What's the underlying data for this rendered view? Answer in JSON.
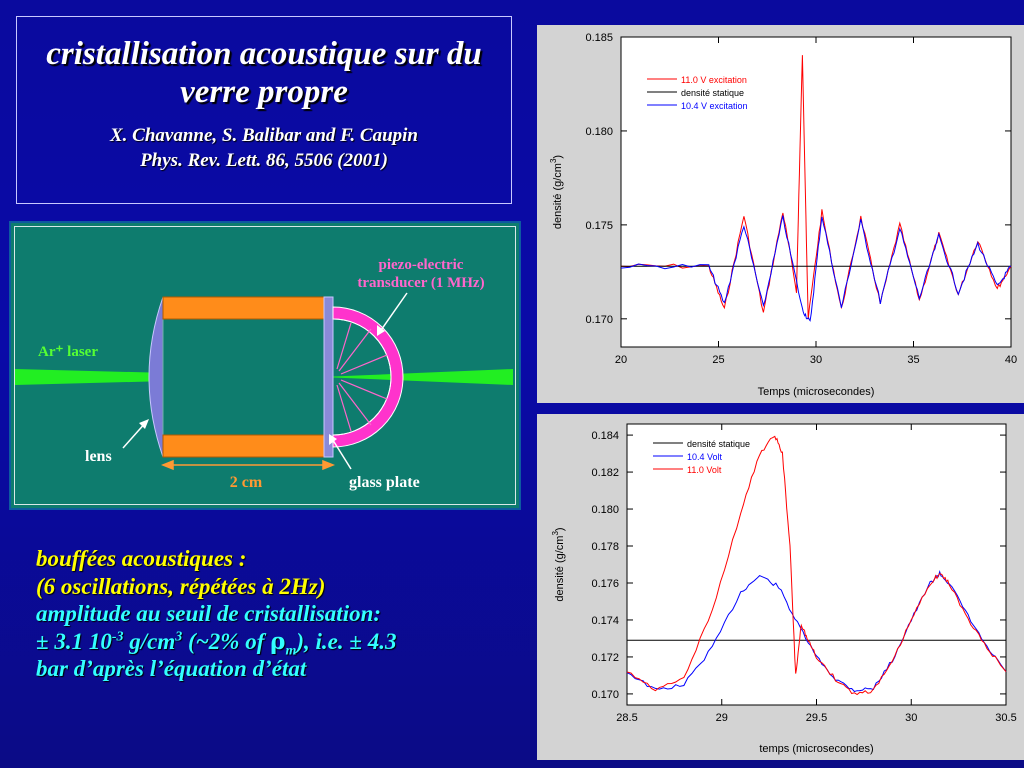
{
  "title": {
    "main": "cristallisation acoustique sur du verre propre",
    "authors": "X. Chavanne, S. Balibar and F. Caupin",
    "reference": "Phys. Rev. Lett. 86, 5506 (2001)"
  },
  "diagram": {
    "laser_label": "Ar⁺ laser",
    "transducer_label_1": "piezo-electric",
    "transducer_label_2": "transducer (1 MHz)",
    "lens_label": "lens",
    "glass_plate_label": "glass plate",
    "scale_label": "2 cm",
    "colors": {
      "background": "#0e7c6e",
      "laser": "#22ee22",
      "cell": "#ff8c1a",
      "transducer": "#ff33cc",
      "lens": "#7b7bd6",
      "label_pink": "#ff66cc",
      "label_green": "#55ff33",
      "label_orange": "#ff9933"
    }
  },
  "bottom_text": {
    "line1": "bouffées acoustiques :",
    "line2": "(6 oscillations, répétées à  2Hz)",
    "line3": "amplitude au seuil de cristallisation:",
    "line4_a": "±   3.1 10",
    "line4_sup1": "-3",
    "line4_b": " g/cm",
    "line4_sup2": "3",
    "line4_c": " (~2% of ",
    "line4_rho": "ρ",
    "line4_sub": "m",
    "line4_d": "), i.e. ± 4.3",
    "line5": "bar d’après l’équation d’état"
  },
  "chart_data": [
    {
      "type": "line",
      "xlabel": "Temps  (microsecondes)",
      "ylabel": "densité  (g/cm",
      "ylabel_sup": "3",
      "ylabel_close": ")",
      "xlim": [
        20,
        40
      ],
      "ylim": [
        0.1685,
        0.185
      ],
      "xticks": [
        20,
        25,
        30,
        35,
        40
      ],
      "yticks": [
        0.17,
        0.175,
        0.18,
        0.185
      ],
      "xtick_labels": [
        "20",
        "25",
        "30",
        "35",
        "40"
      ],
      "ytick_labels": [
        "0.170",
        "0.175",
        "0.180",
        "0.185"
      ],
      "legend_position": "top-left",
      "series": [
        {
          "name": "11.0 V excitation",
          "color": "#ff0000",
          "x": [
            20,
            24.5,
            25.3,
            26.3,
            27.3,
            28.3,
            29.0,
            29.3,
            29.6,
            30.3,
            31.3,
            32.3,
            33.3,
            34.3,
            35.3,
            36.3,
            37.3,
            38.3,
            39.3,
            40
          ],
          "y": [
            0.1728,
            0.1728,
            0.1705,
            0.1755,
            0.1703,
            0.1757,
            0.1715,
            0.1841,
            0.17,
            0.1757,
            0.1705,
            0.1754,
            0.1708,
            0.175,
            0.171,
            0.1745,
            0.1713,
            0.1742,
            0.1716,
            0.1728
          ]
        },
        {
          "name": "densité statique",
          "color": "#000000",
          "x": [
            20,
            40
          ],
          "y": [
            0.1728,
            0.1728
          ]
        },
        {
          "name": "10.4 V  excitation",
          "color": "#0000ff",
          "x": [
            20,
            24.5,
            25.3,
            26.3,
            27.3,
            28.3,
            29.3,
            29.7,
            30.3,
            31.3,
            32.3,
            33.3,
            34.3,
            35.3,
            36.3,
            37.3,
            38.3,
            39.3,
            40
          ],
          "y": [
            0.1728,
            0.1728,
            0.1708,
            0.175,
            0.1706,
            0.1754,
            0.1705,
            0.1698,
            0.1755,
            0.1706,
            0.1752,
            0.1709,
            0.1748,
            0.1711,
            0.1744,
            0.1714,
            0.174,
            0.1717,
            0.1728
          ]
        }
      ]
    },
    {
      "type": "line",
      "xlabel": "temps   (microsecondes)",
      "ylabel": "densité  (g/cm",
      "ylabel_sup": "3",
      "ylabel_close": ")",
      "xlim": [
        28.5,
        30.5
      ],
      "ylim": [
        0.1694,
        0.1846
      ],
      "xticks": [
        28.5,
        29,
        29.5,
        30,
        30.5
      ],
      "yticks": [
        0.17,
        0.172,
        0.174,
        0.176,
        0.178,
        0.18,
        0.182,
        0.184
      ],
      "xtick_labels": [
        "28.5",
        "29",
        "29.5",
        "30",
        "30.5"
      ],
      "ytick_labels": [
        "0.170",
        "0.172",
        "0.174",
        "0.176",
        "0.178",
        "0.180",
        "0.182",
        "0.184"
      ],
      "legend_position": "top-left",
      "series": [
        {
          "name": "densité statique",
          "color": "#000000",
          "x": [
            28.5,
            30.5
          ],
          "y": [
            0.1729,
            0.1729
          ]
        },
        {
          "name": "10.4 Volt",
          "color": "#0000ff",
          "x": [
            28.5,
            28.65,
            28.8,
            28.95,
            29.1,
            29.2,
            29.3,
            29.4,
            29.5,
            29.6,
            29.7,
            29.8,
            29.9,
            30.0,
            30.1,
            30.15,
            30.2,
            30.3,
            30.4,
            30.5
          ],
          "y": [
            0.1712,
            0.1702,
            0.1705,
            0.1725,
            0.1755,
            0.1764,
            0.1758,
            0.1738,
            0.172,
            0.1708,
            0.1702,
            0.1703,
            0.1718,
            0.174,
            0.176,
            0.1765,
            0.176,
            0.1742,
            0.1725,
            0.1712
          ]
        },
        {
          "name": "11.0 Volt",
          "color": "#ff0000",
          "x": [
            28.5,
            28.65,
            28.8,
            28.95,
            29.1,
            29.2,
            29.28,
            29.32,
            29.36,
            29.39,
            29.42,
            29.45,
            29.5,
            29.6,
            29.7,
            29.8,
            29.9,
            30.0,
            30.1,
            30.15,
            30.2,
            30.3,
            30.4,
            30.5
          ],
          "y": [
            0.1712,
            0.1702,
            0.1708,
            0.1745,
            0.1798,
            0.183,
            0.184,
            0.183,
            0.178,
            0.171,
            0.1738,
            0.173,
            0.172,
            0.1708,
            0.17,
            0.1702,
            0.1717,
            0.174,
            0.176,
            0.1765,
            0.176,
            0.174,
            0.1725,
            0.1712
          ]
        }
      ]
    }
  ]
}
